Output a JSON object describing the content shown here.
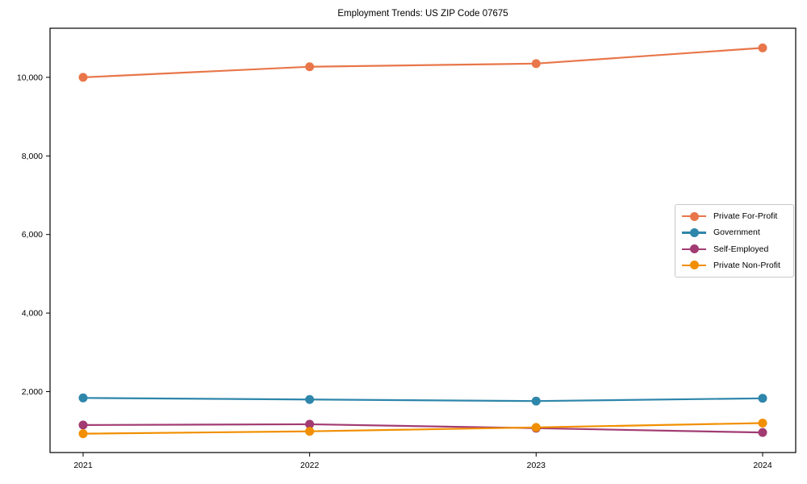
{
  "figure_title": "Employment Trends: US ZIP Code 07675",
  "chart_data": {
    "type": "line",
    "title": "Employment Trends: US ZIP Code 07675",
    "xlabel": "",
    "ylabel": "",
    "categories": [
      "2021",
      "2022",
      "2023",
      "2024"
    ],
    "series": [
      {
        "name": "Private For-Profit",
        "color": "#E8764A",
        "values": [
          10000,
          10270,
          10350,
          10750
        ]
      },
      {
        "name": "Government",
        "color": "#2E86AB",
        "values": [
          1840,
          1800,
          1760,
          1830
        ]
      },
      {
        "name": "Self-Employed",
        "color": "#A23B72",
        "values": [
          1150,
          1170,
          1070,
          960
        ]
      },
      {
        "name": "Private Non-Profit",
        "color": "#F18F01",
        "values": [
          930,
          990,
          1090,
          1200
        ]
      }
    ],
    "ylim": [
      450,
      11250
    ],
    "yticks": {
      "values": [
        2000,
        4000,
        6000,
        8000,
        10000
      ],
      "labels": [
        "2,000",
        "4,000",
        "6,000",
        "8,000",
        "10,000"
      ]
    },
    "grid": false,
    "legend_position": "center-right",
    "axis_color": "#000000"
  }
}
